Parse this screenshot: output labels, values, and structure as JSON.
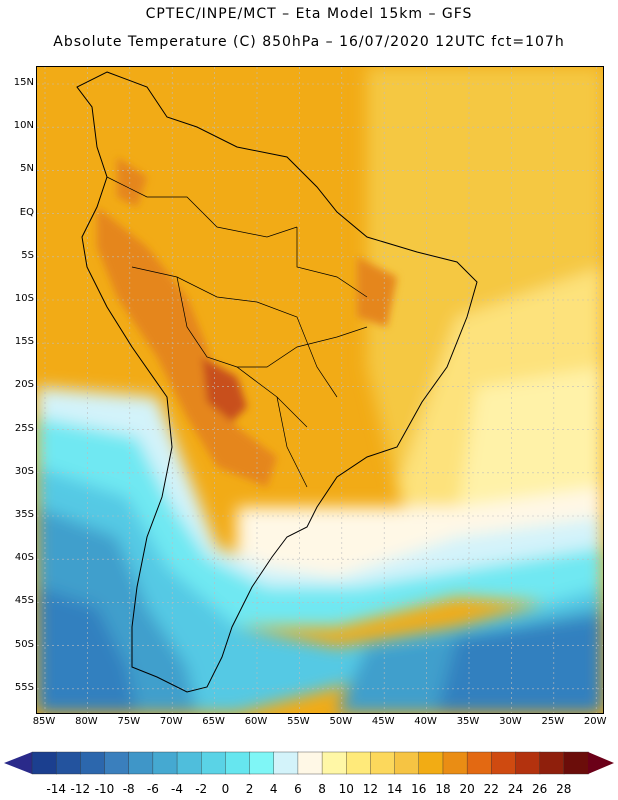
{
  "header": {
    "line1": "CPTEC/INPE/MCT –  Eta Model 15km – GFS",
    "line2": "Absolute Temperature (C) 850hPa – 16/07/2020 12UTC fct=107h"
  },
  "axes": {
    "lat_labels": [
      "15N",
      "10N",
      "5N",
      "EQ",
      "5S",
      "10S",
      "15S",
      "20S",
      "25S",
      "30S",
      "35S",
      "40S",
      "45S",
      "50S",
      "55S"
    ],
    "lon_labels": [
      "85W",
      "80W",
      "75W",
      "70W",
      "65W",
      "60W",
      "55W",
      "50W",
      "45W",
      "40W",
      "35W",
      "30W",
      "25W",
      "20W"
    ]
  },
  "legend": {
    "labels": [
      "-14",
      "-12",
      "-10",
      "-8",
      "-6",
      "-4",
      "-2",
      "0",
      "2",
      "4",
      "6",
      "8",
      "10",
      "12",
      "14",
      "16",
      "18",
      "20",
      "22",
      "24",
      "26",
      "28"
    ],
    "colors": [
      "#1b3f8f",
      "#23539e",
      "#2c67ad",
      "#3a7fbd",
      "#3f96c8",
      "#45a9d1",
      "#4fbedc",
      "#5ad3e6",
      "#66e6ef",
      "#7ff6f6",
      "#d3f3fa",
      "#fff8e6",
      "#fff7a6",
      "#ffea7a",
      "#fcd85c",
      "#f6c443",
      "#f2ac14",
      "#ea8d14",
      "#e36912",
      "#cf4a10",
      "#b3320e",
      "#8f1f0c",
      "#6b0d0a"
    ],
    "arrow_low": "#2a2a8a",
    "arrow_high": "#6b0018"
  },
  "map_colors": {
    "hot": "#f2ab16",
    "warm": "#f5c842",
    "mild": "#fde27b",
    "pale": "#fff2a8",
    "cream": "#fff8e6",
    "veryhot": "#e5861b",
    "hottest": "#c8501a",
    "coolpale": "#d3f3fa",
    "cyan": "#6fe8f2",
    "lightblue": "#55c9e4",
    "blue1": "#3f9fcc",
    "blue2": "#3380bf",
    "blue3": "#2a62a8",
    "blue4": "#1f4793",
    "grid": "#bdbdbd",
    "coast": "#000000"
  }
}
